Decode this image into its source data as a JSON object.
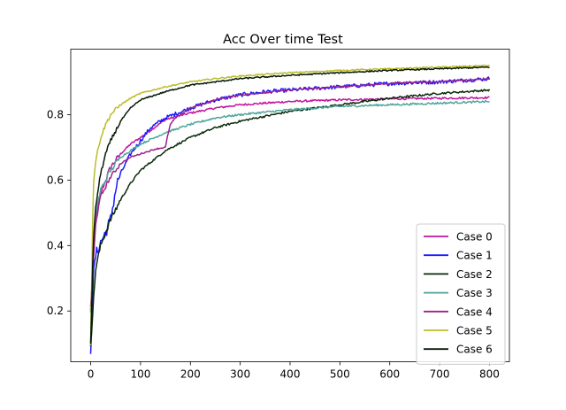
{
  "chart_data": {
    "type": "line",
    "title": "Acc Over time Test",
    "xlabel": "",
    "ylabel": "",
    "xlim": [
      -40,
      840
    ],
    "ylim": [
      0.045,
      1.0
    ],
    "x_ticks": [
      0,
      100,
      200,
      300,
      400,
      500,
      600,
      700,
      800
    ],
    "x_tick_labels": [
      "0",
      "100",
      "200",
      "300",
      "400",
      "500",
      "600",
      "700",
      "800"
    ],
    "y_ticks": [
      0.2,
      0.4,
      0.6,
      0.8
    ],
    "y_tick_labels": [
      "0.2",
      "0.4",
      "0.6",
      "0.8"
    ],
    "grid": false,
    "legend_position": "lower-right",
    "series": [
      {
        "name": "Case 0",
        "color": "#c0149f",
        "x": [
          0,
          10,
          20,
          40,
          60,
          80,
          100,
          150,
          200,
          250,
          300,
          400,
          500,
          600,
          700,
          800
        ],
        "values": [
          0.2,
          0.48,
          0.56,
          0.64,
          0.68,
          0.71,
          0.73,
          0.785,
          0.805,
          0.82,
          0.83,
          0.84,
          0.845,
          0.848,
          0.85,
          0.852
        ]
      },
      {
        "name": "Case 1",
        "color": "#1a1aff",
        "x": [
          0,
          5,
          10,
          20,
          30,
          40,
          50,
          55,
          60,
          70,
          80,
          100,
          120,
          150,
          200,
          250,
          300,
          350,
          400,
          500,
          600,
          700,
          800
        ],
        "values": [
          0.08,
          0.3,
          0.37,
          0.41,
          0.44,
          0.48,
          0.57,
          0.6,
          0.62,
          0.65,
          0.68,
          0.72,
          0.76,
          0.79,
          0.82,
          0.845,
          0.86,
          0.87,
          0.875,
          0.885,
          0.895,
          0.9,
          0.91
        ]
      },
      {
        "name": "Case 2",
        "color": "#0a2a0a",
        "x": [
          0,
          10,
          20,
          40,
          60,
          80,
          100,
          150,
          200,
          250,
          300,
          400,
          500,
          600,
          700,
          800
        ],
        "values": [
          0.1,
          0.33,
          0.4,
          0.48,
          0.54,
          0.59,
          0.63,
          0.69,
          0.73,
          0.76,
          0.78,
          0.81,
          0.83,
          0.85,
          0.865,
          0.875
        ]
      },
      {
        "name": "Case 3",
        "color": "#4ea59a",
        "x": [
          0,
          10,
          20,
          40,
          60,
          80,
          100,
          150,
          200,
          250,
          300,
          400,
          500,
          600,
          700,
          800
        ],
        "values": [
          0.2,
          0.5,
          0.57,
          0.63,
          0.67,
          0.69,
          0.71,
          0.745,
          0.77,
          0.79,
          0.8,
          0.815,
          0.825,
          0.83,
          0.835,
          0.84
        ]
      },
      {
        "name": "Case 4",
        "color": "#a0208a",
        "x": [
          0,
          10,
          20,
          40,
          60,
          80,
          100,
          130,
          150,
          155,
          160,
          170,
          200,
          250,
          300,
          400,
          500,
          600,
          650,
          700,
          800
        ],
        "values": [
          0.21,
          0.47,
          0.55,
          0.61,
          0.65,
          0.67,
          0.68,
          0.695,
          0.7,
          0.74,
          0.77,
          0.79,
          0.82,
          0.845,
          0.86,
          0.875,
          0.885,
          0.895,
          0.9,
          0.9,
          0.91
        ]
      },
      {
        "name": "Case 5",
        "color": "#bcbc2d",
        "x": [
          0,
          5,
          10,
          20,
          30,
          40,
          60,
          80,
          100,
          150,
          200,
          250,
          300,
          400,
          500,
          600,
          700,
          800
        ],
        "values": [
          0.1,
          0.58,
          0.66,
          0.73,
          0.77,
          0.8,
          0.83,
          0.85,
          0.865,
          0.885,
          0.9,
          0.91,
          0.918,
          0.928,
          0.935,
          0.94,
          0.945,
          0.95
        ]
      },
      {
        "name": "Case 6",
        "color": "#061a06",
        "x": [
          0,
          5,
          10,
          20,
          30,
          40,
          60,
          80,
          100,
          150,
          200,
          250,
          300,
          400,
          500,
          600,
          700,
          800
        ],
        "values": [
          0.1,
          0.4,
          0.52,
          0.62,
          0.68,
          0.72,
          0.78,
          0.82,
          0.845,
          0.87,
          0.89,
          0.9,
          0.91,
          0.92,
          0.928,
          0.935,
          0.94,
          0.945
        ]
      }
    ]
  }
}
